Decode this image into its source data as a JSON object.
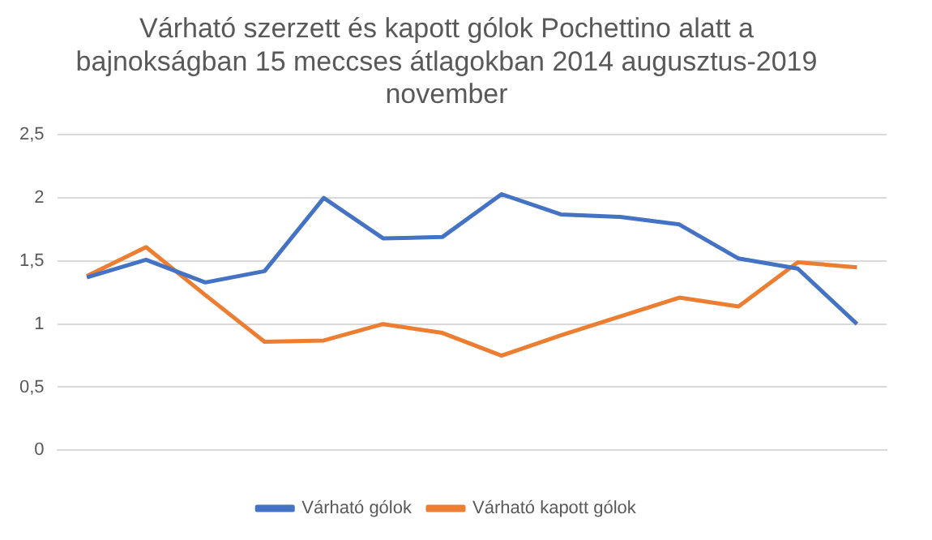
{
  "chart_data": {
    "type": "line",
    "title": "Várható szerzett és kapott gólok Pochettino alatt a bajnokságban 15 meccses átlagokban 2014 augusztus-2019 november",
    "categories": [
      null,
      null,
      null,
      null,
      null,
      null,
      null,
      null,
      null,
      null,
      null,
      null,
      null,
      null
    ],
    "series": [
      {
        "name": "Várható gólok",
        "color": "#4472c4",
        "values": [
          1.37,
          1.51,
          1.33,
          1.42,
          2.0,
          1.68,
          1.69,
          2.03,
          1.87,
          1.85,
          1.79,
          1.52,
          1.44,
          1.0
        ]
      },
      {
        "name": "Várható kapott gólok",
        "color": "#ed7d31",
        "values": [
          1.38,
          1.61,
          1.23,
          0.86,
          0.87,
          1.0,
          0.93,
          0.75,
          0.91,
          1.06,
          1.21,
          1.14,
          1.49,
          1.45
        ]
      }
    ],
    "ylim": [
      0,
      2.5
    ],
    "yticks": [
      0,
      {
        "value": 0.5,
        "label": "0,5"
      },
      1,
      {
        "value": 1.5,
        "label": "1,5"
      },
      2,
      {
        "value": 2.5,
        "label": "2,5"
      }
    ],
    "grid": "y",
    "legend": "bottom",
    "marker": "none",
    "line_style": "solid"
  }
}
